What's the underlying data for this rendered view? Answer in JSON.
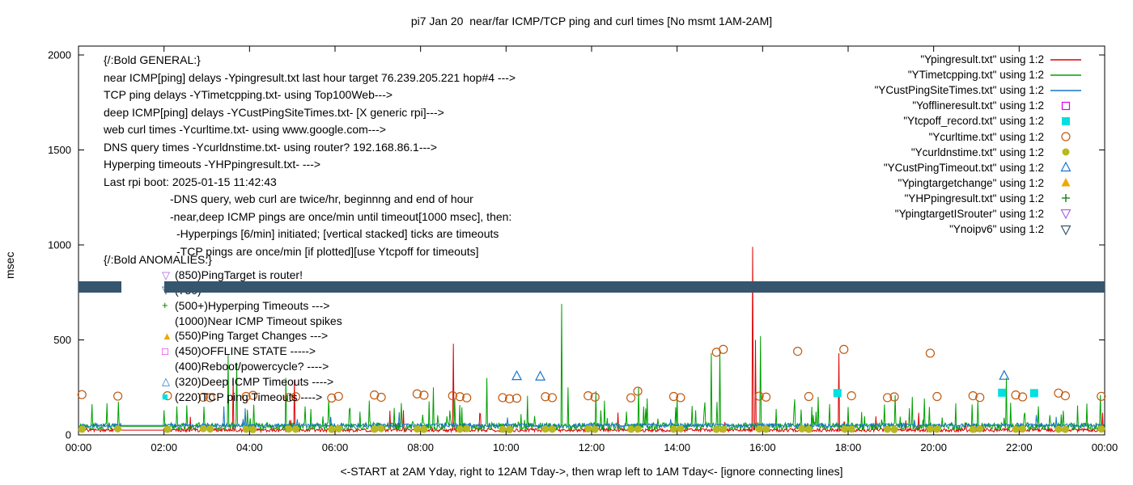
{
  "annotations": {
    "general": [
      {
        "text": "{/:Bold GENERAL:}",
        "indent": 0
      },
      {
        "text": "near ICMP[ping] delays -Ypingresult.txt last hour target 76.239.205.221 hop#4 --->",
        "indent": 0
      },
      {
        "text": "TCP ping delays -YTimetcpping.txt- using Top100Web--->",
        "indent": 0
      },
      {
        "text": "deep ICMP[ping] delays -YCustPingSiteTimes.txt- [X generic rpi]--->",
        "indent": 0
      },
      {
        "text": "web curl times -Ycurltime.txt- using www.google.com--->",
        "indent": 0
      },
      {
        "text": "DNS query times -Ycurldnstime.txt- using router? 192.168.86.1--->",
        "indent": 0
      },
      {
        "text": "Hyperping timeouts -YHPpingresult.txt- --->",
        "indent": 0
      },
      {
        "text": "Last rpi boot: 2025-01-15 11:42:43",
        "indent": 0
      },
      {
        "text": "-DNS query, web curl are twice/hr, beginnng and end of hour",
        "indent": 1
      },
      {
        "text": "-near,deep ICMP pings are once/min until timeout[1000 msec], then:",
        "indent": 1
      },
      {
        "text": "-Hyperpings [6/min] initiated; [vertical stacked] ticks are timeouts",
        "indent": 2
      },
      {
        "text": "-TCP pings are once/min [if plotted][use Ytcpoff for timeouts]",
        "indent": 2
      }
    ],
    "anomalies": [
      {
        "glyph": null,
        "header": true,
        "text": "{/:Bold ANOMALIES:}"
      },
      {
        "glyph": "▽",
        "color": "#a964e0",
        "text": "(850)PingTarget is router!"
      },
      {
        "glyph": "▽",
        "color": "#35566e",
        "text": "(750)"
      },
      {
        "glyph": "+",
        "color": "#007700",
        "text": "(500+)Hyperping Timeouts --->"
      },
      {
        "glyph": null,
        "text": "(1000)Near ICMP Timeout spikes"
      },
      {
        "glyph": "▲",
        "color": "#f0a800",
        "text": "(550)Ping Target Changes --->"
      },
      {
        "glyph": "□",
        "color": "#e000e0",
        "text": "(450)OFFLINE STATE ----->"
      },
      {
        "glyph": null,
        "text": "(400)Reboot/powercycle? ---->"
      },
      {
        "glyph": "△",
        "color": "#1874cd",
        "text": "(320)Deep ICMP Timeouts ---->"
      },
      {
        "glyph": "■",
        "color": "#00e0e0",
        "text": "(220)TCP ping Timeouts ---->"
      }
    ]
  },
  "legend_items": [
    {
      "label": "\"Ypingresult.txt\" using 1:2",
      "color": "#dd0000",
      "sample": "line"
    },
    {
      "label": "\"YTimetcpping.txt\" using 1:2",
      "color": "#00a000",
      "sample": "line"
    },
    {
      "label": "\"YCustPingSiteTimes.txt\" using 1:2",
      "color": "#1874cd",
      "sample": "line"
    },
    {
      "label": "\"Yofflineresult.txt\" using 1:2",
      "color": "#e000e0",
      "sample": "square-open"
    },
    {
      "label": "\"Ytcpoff_record.txt\" using 1:2",
      "color": "#00e0e0",
      "sample": "square-filled"
    },
    {
      "label": "\"Ycurltime.txt\" using 1:2",
      "color": "#c05a10",
      "sample": "circle-open"
    },
    {
      "label": "\"Ycurldnstime.txt\" using 1:2",
      "color": "#b8b820",
      "sample": "circle-filled"
    },
    {
      "label": "\"YCustPingTimeout.txt\" using 1:2",
      "color": "#1874cd",
      "sample": "triangle-up-open"
    },
    {
      "label": "\"Ypingtargetchange\" using 1:2",
      "color": "#f0a800",
      "sample": "triangle-up-filled"
    },
    {
      "label": "\"YHPpingresult.txt\" using 1:2",
      "color": "#007700",
      "sample": "plus"
    },
    {
      "label": "\"YpingtargetISrouter\" using 1:2",
      "color": "#a964e0",
      "sample": "triangle-down-open"
    },
    {
      "label": "\"Ynoipv6\" using 1:2",
      "color": "#35566e",
      "sample": "triangle-down-open"
    }
  ],
  "chart_data": {
    "type": "line",
    "title": "pi7 Jan 20  near/far ICMP/TCP ping and curl times [No msmt 1AM-2AM]",
    "xlabel": "<-START at 2AM Yday, right to 12AM Tday->, then wrap left to 1AM Tday<- [ignore connecting lines]",
    "ylabel": "msec",
    "xlim": [
      0,
      24
    ],
    "ylim": [
      0,
      2000
    ],
    "grid": false,
    "legend_position": "top-right-inside",
    "x_ticks": [
      [
        0,
        "00:00"
      ],
      [
        2,
        "02:00"
      ],
      [
        4,
        "04:00"
      ],
      [
        6,
        "06:00"
      ],
      [
        8,
        "08:00"
      ],
      [
        10,
        "10:00"
      ],
      [
        12,
        "12:00"
      ],
      [
        14,
        "14:00"
      ],
      [
        16,
        "16:00"
      ],
      [
        18,
        "18:00"
      ],
      [
        20,
        "20:00"
      ],
      [
        22,
        "22:00"
      ],
      [
        24,
        "00:00"
      ]
    ],
    "y_ticks": [
      [
        0,
        "0"
      ],
      [
        500,
        "500"
      ],
      [
        1000,
        "1000"
      ],
      [
        1500,
        "1500"
      ],
      [
        2000,
        "2000"
      ]
    ],
    "no_measurement_hours": [
      1,
      2
    ],
    "series": [
      {
        "name": "Ypingresult.txt",
        "kind": "line",
        "color": "#dd0000",
        "base": 25,
        "noise": 9,
        "burst_prob": 0.012,
        "burst_max": 110,
        "seed": 7,
        "spikes": [
          [
            3.62,
            300
          ],
          [
            5.05,
            290
          ],
          [
            8.76,
            480
          ],
          [
            15.76,
            990
          ],
          [
            15.84,
            500
          ],
          [
            17.78,
            430
          ]
        ]
      },
      {
        "name": "YTimetcpping.txt",
        "kind": "line",
        "color": "#00a000",
        "base": 45,
        "noise": 20,
        "burst_prob": 0.055,
        "burst_max": 150,
        "seed": 13,
        "spikes": [
          [
            2.3,
            150
          ],
          [
            3.5,
            420
          ],
          [
            3.7,
            380
          ],
          [
            4.85,
            300
          ],
          [
            5.85,
            185
          ],
          [
            6.8,
            180
          ],
          [
            8.3,
            250
          ],
          [
            9.55,
            300
          ],
          [
            10.5,
            205
          ],
          [
            11.3,
            690
          ],
          [
            11.45,
            250
          ],
          [
            12.1,
            230
          ],
          [
            12.3,
            180
          ],
          [
            13.1,
            250
          ],
          [
            14.0,
            200
          ],
          [
            14.8,
            430
          ],
          [
            15.0,
            450
          ],
          [
            15.95,
            520
          ],
          [
            17.3,
            200
          ],
          [
            18.85,
            160
          ],
          [
            19.1,
            210
          ],
          [
            19.5,
            200
          ],
          [
            20.9,
            160
          ],
          [
            21.7,
            300
          ],
          [
            23.9,
            210
          ]
        ]
      },
      {
        "name": "YCustPingSiteTimes.txt",
        "kind": "line",
        "color": "#1874cd",
        "base": 50,
        "noise": 9,
        "burst_prob": 0.01,
        "burst_max": 55,
        "seed": 29,
        "spikes": [
          [
            3.4,
            150
          ],
          [
            3.9,
            140
          ],
          [
            7.5,
            120
          ]
        ]
      },
      {
        "name": "Ycurltime.txt",
        "kind": "scatter",
        "marker": "circle-open",
        "color": "#c05a10",
        "points": [
          [
            0.08,
            212
          ],
          [
            0.92,
            204
          ],
          [
            2.08,
            206
          ],
          [
            2.92,
            198
          ],
          [
            3.08,
            196
          ],
          [
            3.92,
            202
          ],
          [
            4.08,
            208
          ],
          [
            4.92,
            197
          ],
          [
            5.08,
            201
          ],
          [
            5.92,
            194
          ],
          [
            6.08,
            203
          ],
          [
            6.92,
            210
          ],
          [
            7.08,
            198
          ],
          [
            7.92,
            216
          ],
          [
            8.08,
            209
          ],
          [
            8.75,
            206
          ],
          [
            8.92,
            201
          ],
          [
            9.08,
            195
          ],
          [
            9.92,
            196
          ],
          [
            10.08,
            190
          ],
          [
            10.25,
            193
          ],
          [
            10.92,
            201
          ],
          [
            11.08,
            196
          ],
          [
            11.92,
            206
          ],
          [
            12.08,
            199
          ],
          [
            12.92,
            195
          ],
          [
            13.08,
            230
          ],
          [
            13.92,
            202
          ],
          [
            14.08,
            196
          ],
          [
            14.92,
            435
          ],
          [
            15.08,
            450
          ],
          [
            15.92,
            204
          ],
          [
            16.08,
            199
          ],
          [
            16.82,
            440
          ],
          [
            17.08,
            202
          ],
          [
            17.9,
            450
          ],
          [
            18.08,
            206
          ],
          [
            18.92,
            196
          ],
          [
            19.08,
            200
          ],
          [
            19.92,
            430
          ],
          [
            20.08,
            202
          ],
          [
            20.92,
            206
          ],
          [
            21.08,
            197
          ],
          [
            21.92,
            210
          ],
          [
            22.08,
            200
          ],
          [
            22.92,
            220
          ],
          [
            23.08,
            206
          ],
          [
            23.92,
            203
          ]
        ]
      },
      {
        "name": "Ycurldnstime.txt",
        "kind": "scatter",
        "marker": "circle-filled",
        "color": "#b8b820",
        "points": [
          [
            0.08,
            30
          ],
          [
            0.92,
            32
          ],
          [
            2.08,
            29
          ],
          [
            2.92,
            33
          ],
          [
            3.08,
            31
          ],
          [
            3.92,
            30
          ],
          [
            4.08,
            28
          ],
          [
            4.92,
            31
          ],
          [
            5.08,
            30
          ],
          [
            5.92,
            29
          ],
          [
            6.08,
            32
          ],
          [
            6.92,
            30
          ],
          [
            7.08,
            34
          ],
          [
            7.92,
            31
          ],
          [
            8.08,
            29
          ],
          [
            8.92,
            30
          ],
          [
            9.08,
            33
          ],
          [
            9.92,
            30
          ],
          [
            10.08,
            28
          ],
          [
            10.92,
            31
          ],
          [
            11.08,
            30
          ],
          [
            11.92,
            32
          ],
          [
            12.08,
            29
          ],
          [
            12.92,
            30
          ],
          [
            13.08,
            31
          ],
          [
            13.92,
            30
          ],
          [
            14.08,
            33
          ],
          [
            14.92,
            29
          ],
          [
            15.08,
            30
          ],
          [
            15.92,
            31
          ],
          [
            16.08,
            30
          ],
          [
            16.92,
            32
          ],
          [
            17.08,
            29
          ],
          [
            17.92,
            30
          ],
          [
            18.08,
            31
          ],
          [
            18.92,
            30
          ],
          [
            19.08,
            28
          ],
          [
            19.92,
            31
          ],
          [
            20.08,
            30
          ],
          [
            20.92,
            29
          ],
          [
            21.08,
            32
          ],
          [
            21.92,
            30
          ],
          [
            22.08,
            31
          ],
          [
            22.92,
            30
          ],
          [
            23.08,
            29
          ],
          [
            23.92,
            31
          ]
        ]
      },
      {
        "name": "YCustPingTimeout.txt",
        "kind": "scatter",
        "marker": "triangle-up-open",
        "color": "#1874cd",
        "points": [
          [
            10.25,
            310
          ],
          [
            10.8,
            308
          ],
          [
            21.65,
            312
          ]
        ]
      },
      {
        "name": "Ytcpoff_record.txt",
        "kind": "scatter",
        "marker": "square-filled",
        "color": "#00e0e0",
        "points": [
          [
            17.75,
            220
          ],
          [
            21.6,
            222
          ],
          [
            22.35,
            220
          ]
        ]
      },
      {
        "name": "Yofflineresult.txt",
        "kind": "scatter",
        "marker": "square-open",
        "color": "#e000e0",
        "points": []
      },
      {
        "name": "Ypingtargetchange",
        "kind": "scatter",
        "marker": "triangle-up-filled",
        "color": "#f0a800",
        "points": []
      },
      {
        "name": "YHPpingresult.txt",
        "kind": "scatter",
        "marker": "plus",
        "color": "#007700",
        "points": []
      },
      {
        "name": "YpingtargetISrouter",
        "kind": "scatter",
        "marker": "triangle-down-open",
        "color": "#a964e0",
        "points": []
      }
    ],
    "band": {
      "name": "Ynoipv6",
      "color": "#35566e",
      "y": [
        748,
        810
      ],
      "segments": [
        [
          0,
          1.0
        ],
        [
          2.0,
          24
        ]
      ]
    }
  }
}
